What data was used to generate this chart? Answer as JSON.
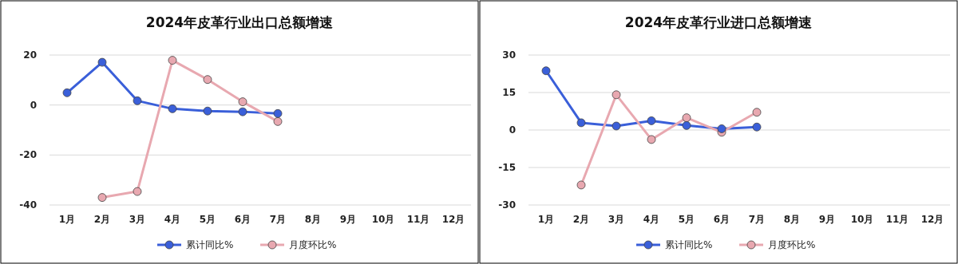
{
  "chart_data": [
    {
      "type": "line",
      "title": "2024年皮革行业出口总额增速",
      "categories": [
        "1月",
        "2月",
        "3月",
        "4月",
        "5月",
        "6月",
        "7月",
        "8月",
        "9月",
        "10月",
        "11月",
        "12月"
      ],
      "series": [
        {
          "name": "累计同比%",
          "color": "#3a5fd9",
          "values": [
            4.9,
            17.1,
            1.7,
            -1.5,
            -2.4,
            -2.7,
            -3.4,
            null,
            null,
            null,
            null,
            null
          ]
        },
        {
          "name": "月度环比%",
          "color": "#e8a8b0",
          "values": [
            null,
            -37,
            -34.6,
            17.9,
            10.2,
            1.3,
            -6.6,
            null,
            null,
            null,
            null,
            null
          ]
        }
      ],
      "ylim": [
        -40,
        20
      ],
      "yticks": [
        -40,
        -20,
        0,
        20
      ],
      "grid": "y",
      "legend": "bottom",
      "marker": "circle"
    },
    {
      "type": "line",
      "title": "2024年皮革行业进口总额增速",
      "categories": [
        "1月",
        "2月",
        "3月",
        "4月",
        "5月",
        "6月",
        "7月",
        "8月",
        "9月",
        "10月",
        "11月",
        "12月"
      ],
      "series": [
        {
          "name": "累计同比%",
          "color": "#3a5fd9",
          "values": [
            23.7,
            2.9,
            1.6,
            3.7,
            1.8,
            0.5,
            1.2,
            null,
            null,
            null,
            null,
            null
          ]
        },
        {
          "name": "月度环比%",
          "color": "#e8a8b0",
          "values": [
            null,
            -22,
            14.1,
            -3.8,
            4.9,
            -0.9,
            7.1,
            null,
            null,
            null,
            null,
            null
          ]
        }
      ],
      "ylim": [
        -30,
        30
      ],
      "yticks": [
        -30,
        -15,
        0,
        15,
        30
      ],
      "grid": "y",
      "legend": "bottom",
      "marker": "circle"
    }
  ]
}
